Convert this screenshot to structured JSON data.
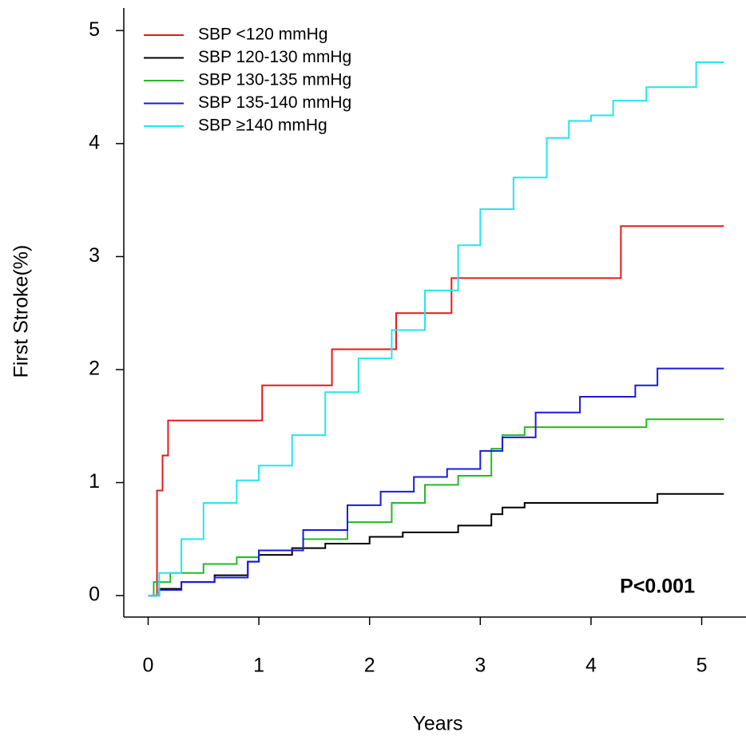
{
  "chart_data": {
    "type": "line",
    "step": true,
    "x_label": "Years",
    "y_label": "First Stroke(%)",
    "annotation": "P<0.001",
    "xlim": [
      -0.22,
      5.4
    ],
    "ylim": [
      -0.19,
      5.2
    ],
    "xticks": [
      0,
      1,
      2,
      3,
      4,
      5
    ],
    "yticks": [
      0,
      1,
      2,
      3,
      4,
      5
    ],
    "grid": false,
    "legend": "top-left",
    "series": [
      {
        "name": "SBP <120 mmHg",
        "color": "#e41a1c",
        "x": [
          0,
          0.08,
          0.13,
          0.18,
          1.03,
          1.66,
          2.24,
          2.74,
          4.27,
          5.2
        ],
        "values": [
          0,
          0.93,
          1.24,
          1.55,
          1.86,
          2.18,
          2.5,
          2.81,
          3.27,
          3.27
        ]
      },
      {
        "name": "SBP 120-130 mmHg",
        "color": "#000000",
        "x": [
          0,
          0.1,
          0.3,
          0.6,
          0.9,
          1.0,
          1.3,
          1.6,
          2.0,
          2.3,
          2.8,
          3.1,
          3.2,
          3.4,
          4.6,
          5.2
        ],
        "values": [
          0,
          0.06,
          0.12,
          0.18,
          0.3,
          0.36,
          0.42,
          0.46,
          0.52,
          0.56,
          0.62,
          0.72,
          0.78,
          0.82,
          0.9,
          0.9
        ]
      },
      {
        "name": "SBP 130-135 mmHg",
        "color": "#22bb22",
        "x": [
          0,
          0.05,
          0.2,
          0.5,
          0.8,
          1.0,
          1.4,
          1.8,
          2.2,
          2.5,
          2.8,
          3.1,
          3.2,
          3.4,
          4.5,
          5.2
        ],
        "values": [
          0,
          0.12,
          0.2,
          0.28,
          0.34,
          0.4,
          0.5,
          0.65,
          0.82,
          0.98,
          1.06,
          1.3,
          1.42,
          1.49,
          1.56,
          1.56
        ]
      },
      {
        "name": "SBP 135-140 mmHg",
        "color": "#1a1adf",
        "x": [
          0,
          0.1,
          0.3,
          0.6,
          0.9,
          1.0,
          1.4,
          1.8,
          2.1,
          2.4,
          2.7,
          3.0,
          3.2,
          3.5,
          3.9,
          4.4,
          4.6,
          5.2
        ],
        "values": [
          0,
          0.05,
          0.12,
          0.16,
          0.3,
          0.4,
          0.58,
          0.8,
          0.92,
          1.05,
          1.12,
          1.28,
          1.4,
          1.62,
          1.76,
          1.86,
          2.01,
          2.01
        ]
      },
      {
        "name": "SBP ≥140 mmHg",
        "color": "#22e6ee",
        "x": [
          0,
          0.1,
          0.3,
          0.5,
          0.8,
          1.0,
          1.3,
          1.6,
          1.9,
          2.2,
          2.5,
          2.8,
          3.0,
          3.3,
          3.6,
          3.8,
          4.0,
          4.2,
          4.5,
          4.95,
          5.2
        ],
        "values": [
          0,
          0.2,
          0.5,
          0.82,
          1.02,
          1.15,
          1.42,
          1.8,
          2.1,
          2.35,
          2.7,
          3.1,
          3.42,
          3.7,
          4.05,
          4.2,
          4.25,
          4.38,
          4.5,
          4.72,
          4.72
        ]
      }
    ]
  }
}
